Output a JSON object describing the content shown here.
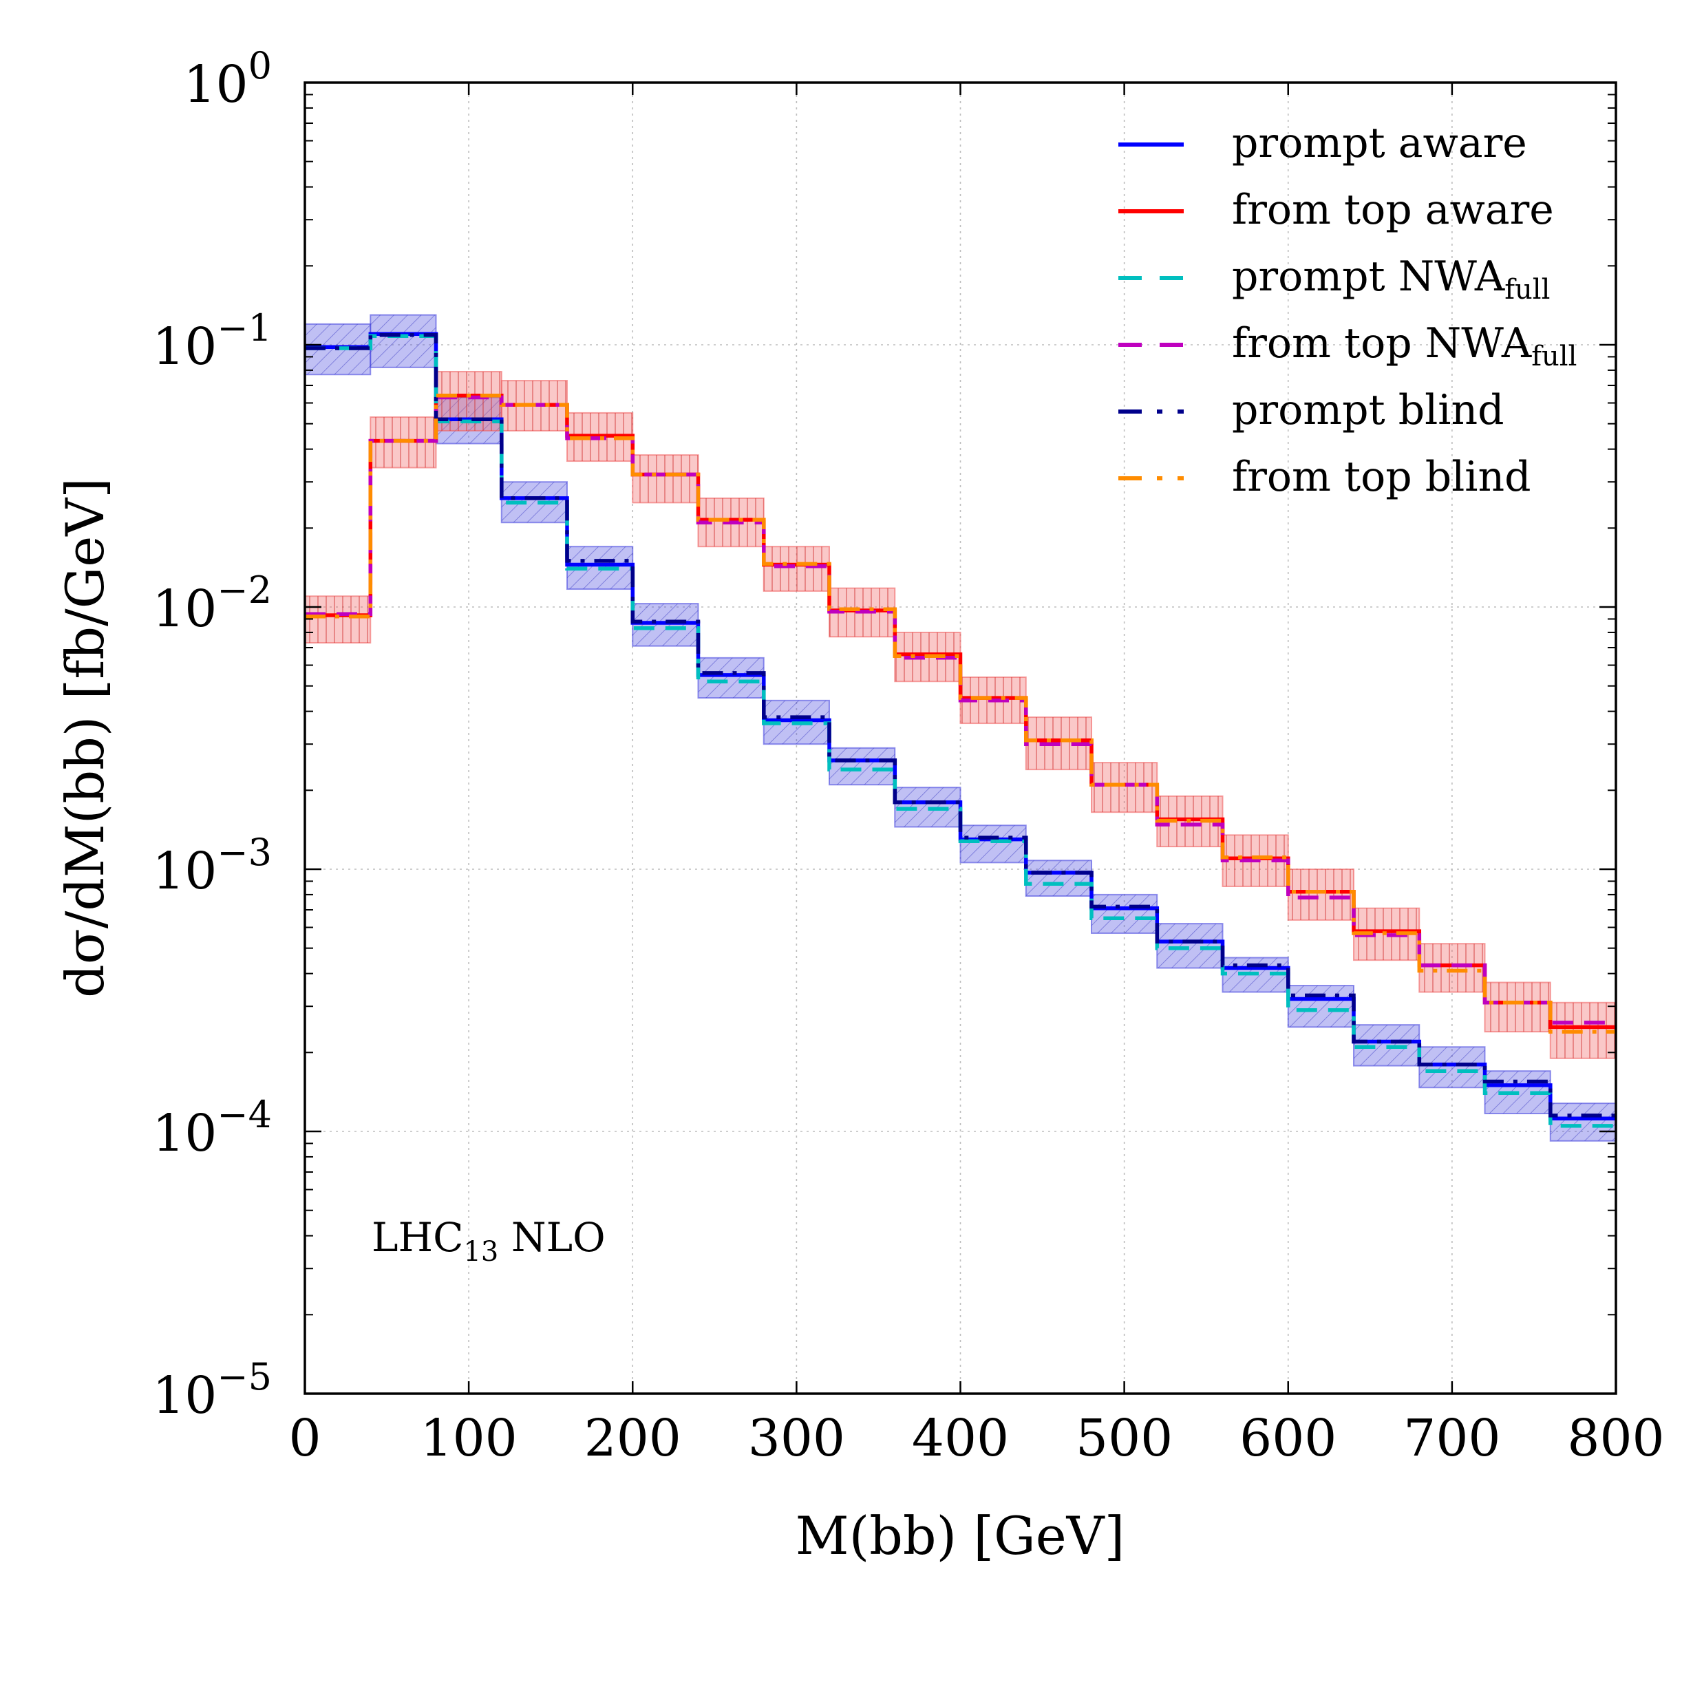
{
  "chart_data": {
    "type": "step-histogram",
    "title": "",
    "xlabel": "M(bb) [GeV]",
    "ylabel": "dσ/dM(bb) [fb/GeV]",
    "xlim": [
      0,
      800
    ],
    "ylim": [
      1e-05,
      1
    ],
    "yscale": "log",
    "grid": true,
    "legend_position": "top-right",
    "x_ticks": [
      "0",
      "100",
      "200",
      "300",
      "400",
      "500",
      "600",
      "700",
      "800"
    ],
    "y_ticks": [
      {
        "base": "10",
        "exp": "0"
      },
      {
        "base": "10",
        "exp": "−1"
      },
      {
        "base": "10",
        "exp": "−2"
      },
      {
        "base": "10",
        "exp": "−3"
      },
      {
        "base": "10",
        "exp": "−4"
      },
      {
        "base": "10",
        "exp": "−5"
      }
    ],
    "annotation": {
      "main": "LHC",
      "sub": "13",
      "suffix": " NLO"
    },
    "bin_edges": [
      0,
      40,
      80,
      120,
      160,
      200,
      240,
      280,
      320,
      360,
      400,
      440,
      480,
      520,
      560,
      600,
      640,
      680,
      720,
      760,
      800
    ],
    "bands": [
      {
        "name": "prompt uncertainty band",
        "color": "#4a4ae0",
        "lower": [
          0.077,
          0.082,
          0.042,
          0.021,
          0.0117,
          0.0071,
          0.0045,
          0.003,
          0.0021,
          0.00145,
          0.00106,
          0.00079,
          0.00057,
          0.00042,
          0.00034,
          0.00025,
          0.000178,
          0.000147,
          0.000117,
          9.2e-05
        ],
        "upper": [
          0.12,
          0.13,
          0.063,
          0.03,
          0.017,
          0.0103,
          0.0064,
          0.0044,
          0.0029,
          0.00205,
          0.00147,
          0.00108,
          0.0008,
          0.00062,
          0.00046,
          0.00036,
          0.000255,
          0.00021,
          0.00017,
          0.000128
        ]
      },
      {
        "name": "from top uncertainty band",
        "color": "#f06060",
        "lower": [
          0.0073,
          0.034,
          0.047,
          0.047,
          0.036,
          0.025,
          0.017,
          0.0115,
          0.0077,
          0.0052,
          0.0036,
          0.0024,
          0.00165,
          0.00122,
          0.00086,
          0.00064,
          0.00045,
          0.00034,
          0.00024,
          0.00019
        ],
        "upper": [
          0.011,
          0.053,
          0.079,
          0.073,
          0.055,
          0.038,
          0.026,
          0.017,
          0.0118,
          0.008,
          0.0054,
          0.0038,
          0.00255,
          0.0019,
          0.00135,
          0.001,
          0.00071,
          0.00052,
          0.00037,
          0.00031
        ]
      }
    ],
    "series": [
      {
        "name": "prompt aware",
        "label": "prompt aware",
        "color": "#0000ff",
        "dash": "solid",
        "values": [
          0.098,
          0.11,
          0.052,
          0.026,
          0.0145,
          0.0087,
          0.0055,
          0.0037,
          0.0026,
          0.0018,
          0.0013,
          0.00097,
          0.00071,
          0.00053,
          0.00042,
          0.00032,
          0.00022,
          0.00018,
          0.00015,
          0.000112
        ]
      },
      {
        "name": "from top aware",
        "label": "from top aware",
        "color": "#ff0000",
        "dash": "solid",
        "values": [
          0.0093,
          0.043,
          0.064,
          0.059,
          0.045,
          0.032,
          0.0215,
          0.0145,
          0.0097,
          0.0066,
          0.0045,
          0.0031,
          0.0021,
          0.00155,
          0.0011,
          0.00082,
          0.00058,
          0.00043,
          0.00031,
          0.00025
        ]
      },
      {
        "name": "prompt NWA full",
        "label": "prompt NWA",
        "label_sub": "full",
        "color": "#00bfbf",
        "dash": "dashed",
        "values": [
          0.097,
          0.108,
          0.051,
          0.025,
          0.014,
          0.0083,
          0.0052,
          0.0036,
          0.0024,
          0.0017,
          0.00128,
          0.00088,
          0.00065,
          0.0005,
          0.0004,
          0.00029,
          0.00021,
          0.00017,
          0.00014,
          0.000105
        ]
      },
      {
        "name": "from top NWA full",
        "label": "from top NWA",
        "label_sub": "full",
        "color": "#bf00bf",
        "dash": "dashed",
        "values": [
          0.0094,
          0.043,
          0.063,
          0.059,
          0.044,
          0.032,
          0.021,
          0.0143,
          0.0096,
          0.0064,
          0.0044,
          0.003,
          0.0021,
          0.00148,
          0.00108,
          0.00078,
          0.00056,
          0.00043,
          0.00031,
          0.00026
        ]
      },
      {
        "name": "prompt blind",
        "label": "prompt blind",
        "color": "#00008b",
        "dash": "dashdot",
        "values": [
          0.097,
          0.109,
          0.052,
          0.026,
          0.015,
          0.0088,
          0.0056,
          0.0038,
          0.0026,
          0.0018,
          0.00132,
          0.00097,
          0.00072,
          0.00053,
          0.00043,
          0.00033,
          0.00022,
          0.00018,
          0.000155,
          0.000115
        ]
      },
      {
        "name": "from top blind",
        "label": "from top blind",
        "color": "#ff8c00",
        "dash": "dashdot",
        "values": [
          0.0092,
          0.043,
          0.064,
          0.059,
          0.044,
          0.032,
          0.0215,
          0.0146,
          0.0098,
          0.0065,
          0.0045,
          0.0031,
          0.0021,
          0.00153,
          0.00111,
          0.00082,
          0.00057,
          0.00041,
          0.00031,
          0.00024
        ]
      }
    ]
  }
}
